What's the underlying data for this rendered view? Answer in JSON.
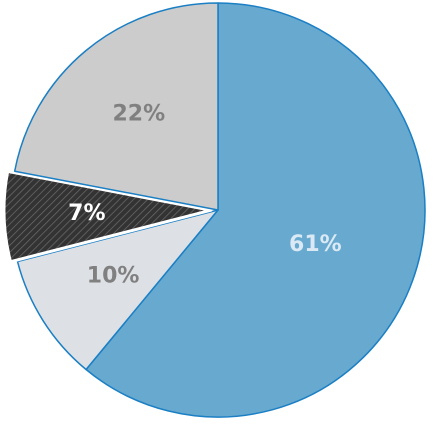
{
  "chart_data": {
    "type": "pie",
    "values": [
      61,
      10,
      7,
      22
    ],
    "value_labels": [
      "61%",
      "10%",
      "7%",
      "22%"
    ],
    "colors": [
      "#67a9cf",
      "#dde1e5",
      "#333333",
      "#cccccc"
    ],
    "exploded": [
      false,
      false,
      true,
      false
    ]
  }
}
